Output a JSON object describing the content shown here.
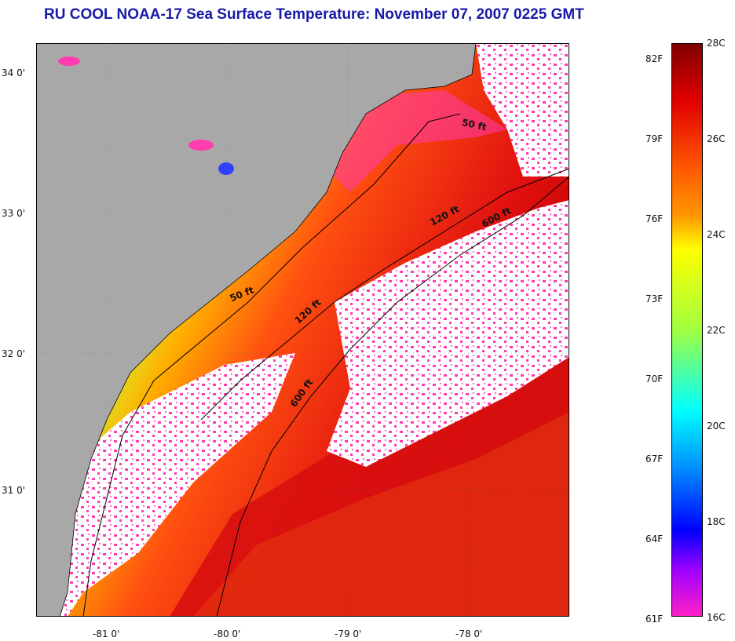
{
  "title": "RU COOL  NOAA-17  Sea Surface Temperature:  November 07, 2007 0225 GMT",
  "map": {
    "lat_labels": [
      "34 0'",
      "33 0'",
      "32 0'",
      "31 0'"
    ],
    "lon_labels": [
      "-81 0'",
      "-80 0'",
      "-79 0'",
      "-78 0'"
    ],
    "isobath_labels": [
      "50 ft",
      "120 ft",
      "600 ft",
      "50 ft",
      "120 ft",
      "600 ft"
    ],
    "colors": {
      "land": "#a8a8a8",
      "cloud": "#ffffff",
      "contour": "#000000"
    }
  },
  "colorbar": {
    "fahrenheit": [
      "82F",
      "79F",
      "76F",
      "73F",
      "70F",
      "67F",
      "64F",
      "61F"
    ],
    "celsius": [
      "28C",
      "26C",
      "24C",
      "22C",
      "20C",
      "18C",
      "16C"
    ],
    "stops": [
      "#800000",
      "#e00000",
      "#ff5a00",
      "#ff9600",
      "#ffff00",
      "#a0ff40",
      "#00ffff",
      "#0090ff",
      "#0000ff",
      "#a000ff",
      "#ff20c8"
    ]
  }
}
